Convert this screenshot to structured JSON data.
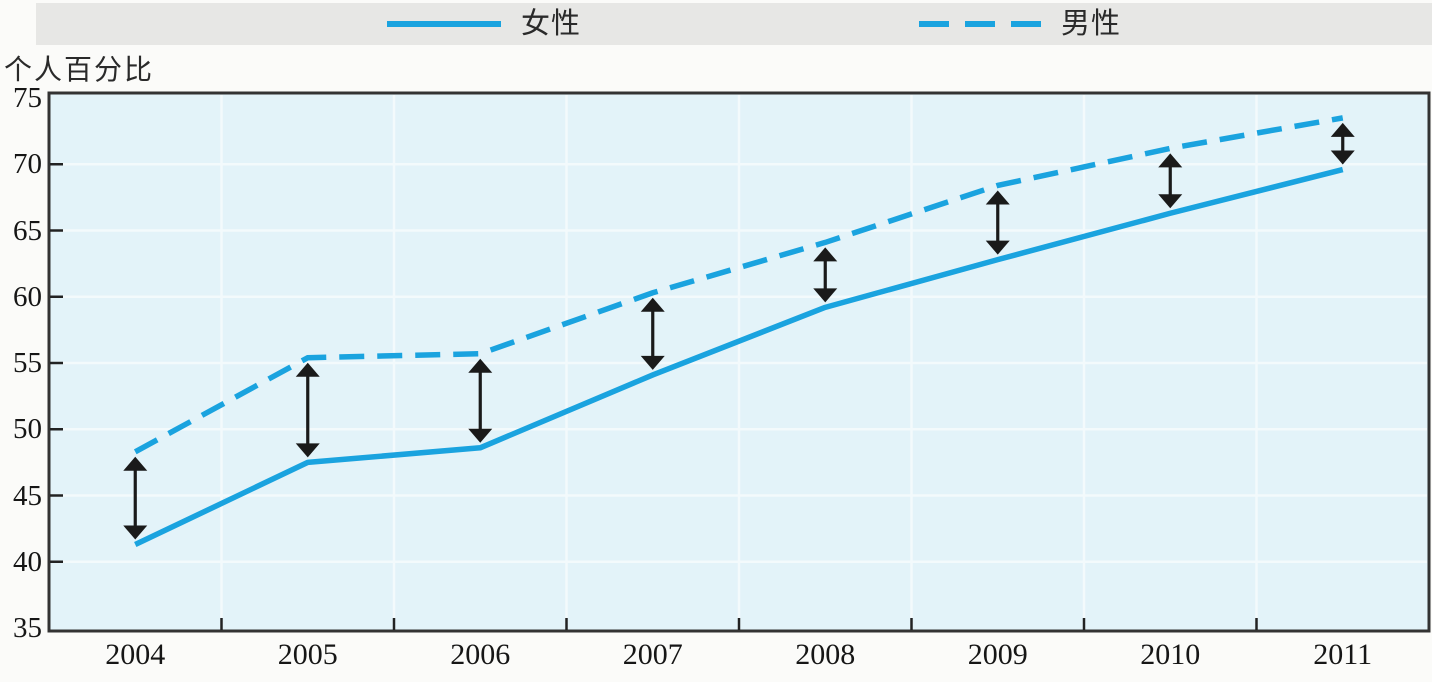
{
  "axis_title": "个人百分比",
  "legend": {
    "female_label": "女性",
    "male_label": "男性"
  },
  "chart_data": {
    "type": "line",
    "categories": [
      "2004",
      "2005",
      "2006",
      "2007",
      "2008",
      "2009",
      "2010",
      "2011"
    ],
    "series": [
      {
        "name": "女性",
        "style": "solid",
        "values": [
          41.3,
          47.5,
          48.6,
          54.1,
          59.2,
          62.8,
          66.3,
          69.6
        ]
      },
      {
        "name": "男性",
        "style": "dashed",
        "values": [
          48.3,
          55.4,
          55.7,
          60.3,
          64.1,
          68.4,
          71.2,
          73.5
        ]
      }
    ],
    "title": "",
    "xlabel": "",
    "ylabel": "个人百分比",
    "ylim": [
      35,
      75
    ],
    "yticks": [
      75,
      70,
      65,
      60,
      55,
      50,
      45,
      40,
      35
    ],
    "grid": true,
    "legend_position": "top",
    "annotations": "black double-headed vertical arrows marking the male-female gap at each year"
  },
  "colors": {
    "line_blue": "#1aa3df",
    "plot_background": "#e3f3f9",
    "gridline": "#f3fafc",
    "legend_band": "#e7e7e5",
    "page_background": "#fbfbf9",
    "plot_border": "#333333",
    "arrow": "#1a1a1a",
    "text": "#1f1f1f"
  }
}
